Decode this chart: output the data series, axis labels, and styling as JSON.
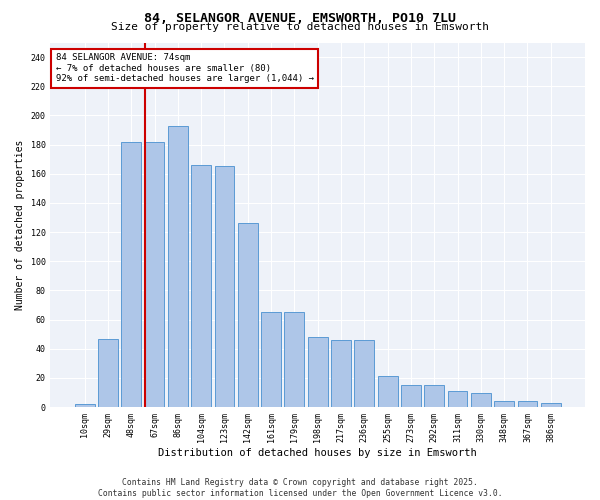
{
  "title": "84, SELANGOR AVENUE, EMSWORTH, PO10 7LU",
  "subtitle": "Size of property relative to detached houses in Emsworth",
  "xlabel": "Distribution of detached houses by size in Emsworth",
  "ylabel": "Number of detached properties",
  "categories": [
    "10sqm",
    "29sqm",
    "48sqm",
    "67sqm",
    "86sqm",
    "104sqm",
    "123sqm",
    "142sqm",
    "161sqm",
    "179sqm",
    "198sqm",
    "217sqm",
    "236sqm",
    "255sqm",
    "273sqm",
    "292sqm",
    "311sqm",
    "330sqm",
    "348sqm",
    "367sqm",
    "386sqm"
  ],
  "bar_values": [
    2,
    47,
    182,
    182,
    193,
    166,
    165,
    126,
    65,
    65,
    48,
    46,
    46,
    21,
    15,
    15,
    11,
    10,
    4,
    4,
    3
  ],
  "bar_color": "#aec6e8",
  "bar_edge_color": "#5b9bd5",
  "highlight_color": "#cc0000",
  "annotation_text": "84 SELANGOR AVENUE: 74sqm\n← 7% of detached houses are smaller (80)\n92% of semi-detached houses are larger (1,044) →",
  "annotation_box_color": "#ffffff",
  "annotation_box_edge_color": "#cc0000",
  "ylim": [
    0,
    250
  ],
  "yticks": [
    0,
    20,
    40,
    60,
    80,
    100,
    120,
    140,
    160,
    180,
    200,
    220,
    240
  ],
  "background_color": "#eef2f9",
  "footer_line1": "Contains HM Land Registry data © Crown copyright and database right 2025.",
  "footer_line2": "Contains public sector information licensed under the Open Government Licence v3.0.",
  "title_fontsize": 9.5,
  "subtitle_fontsize": 8,
  "xlabel_fontsize": 7.5,
  "ylabel_fontsize": 7,
  "tick_fontsize": 6,
  "annotation_fontsize": 6.5,
  "footer_fontsize": 5.8
}
